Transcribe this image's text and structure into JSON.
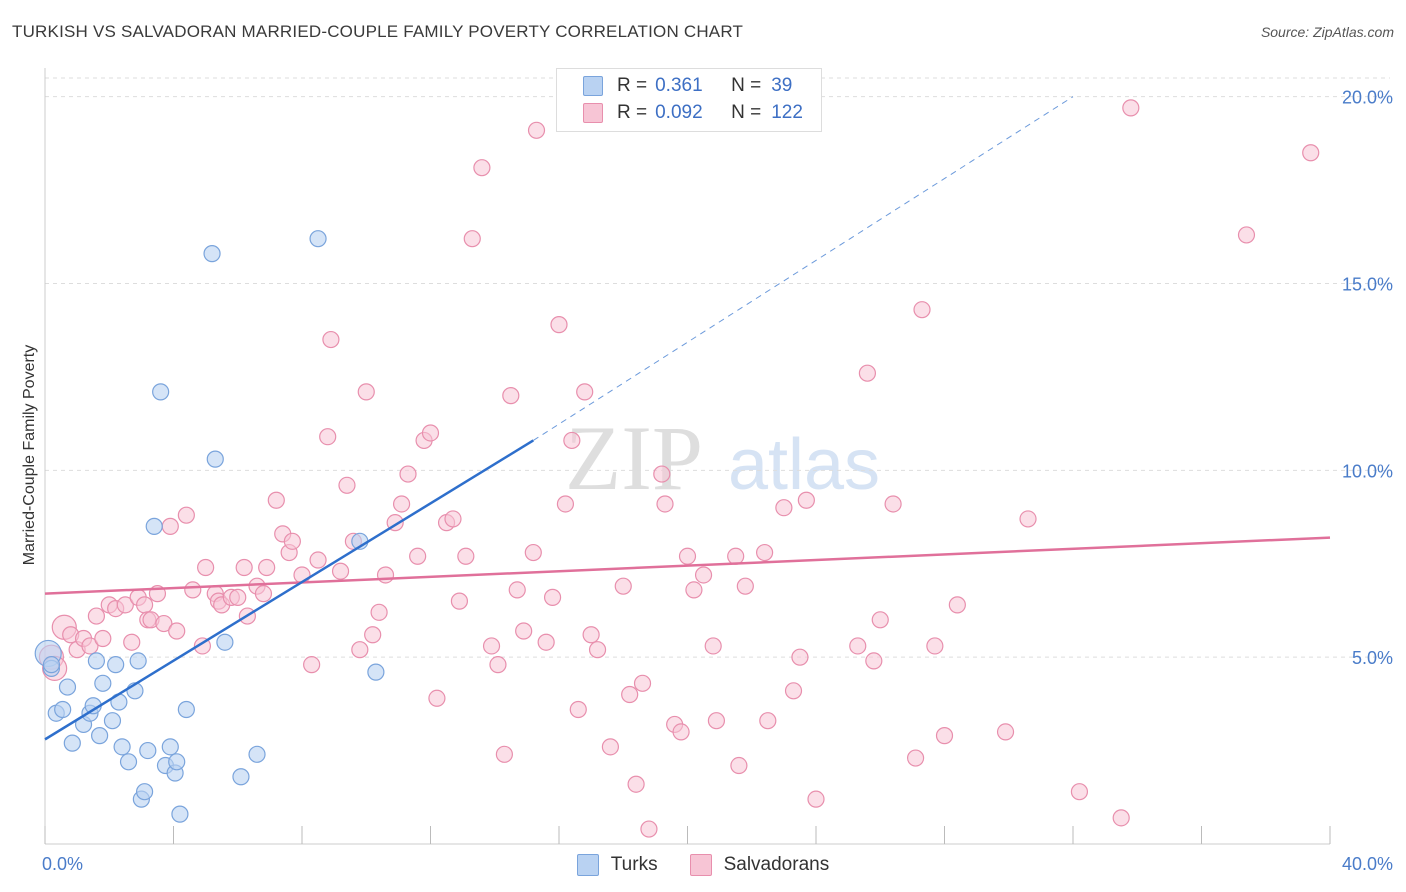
{
  "header": {
    "title": "TURKISH VS SALVADORAN MARRIED-COUPLE FAMILY POVERTY CORRELATION CHART",
    "source": "Source: ZipAtlas.com"
  },
  "watermark": {
    "zip": "ZIP",
    "atlas": "atlas"
  },
  "legend": {
    "r_label": "R =",
    "n_label": "N =",
    "turks": {
      "r": "0.361",
      "n": "39"
    },
    "salvadorans": {
      "r": "0.092",
      "n": "122"
    }
  },
  "colors": {
    "turks_fill": "#b9d2f2",
    "turks_stroke": "#7aa4dc",
    "turks_line": "#2e6fcc",
    "salv_fill": "#f7c5d5",
    "salv_stroke": "#e88fad",
    "salv_line": "#e0709a",
    "tick_text": "#4a7cc9"
  },
  "chart_data": {
    "type": "scatter",
    "title": "TURKISH VS SALVADORAN MARRIED-COUPLE FAMILY POVERTY CORRELATION CHART",
    "xlabel": "",
    "ylabel": "Married-Couple Family Poverty",
    "xlim": [
      0,
      40
    ],
    "ylim": [
      0,
      20.5
    ],
    "x_tick_labels": [
      {
        "value": 0,
        "label": "0.0%"
      },
      {
        "value": 40,
        "label": "40.0%"
      }
    ],
    "y_tick_labels": [
      {
        "value": 5,
        "label": "5.0%"
      },
      {
        "value": 10,
        "label": "10.0%"
      },
      {
        "value": 15,
        "label": "15.0%"
      },
      {
        "value": 20,
        "label": "20.0%"
      }
    ],
    "series": [
      {
        "name": "Turks",
        "r": 0.361,
        "n": 39,
        "trend": {
          "x0": 0,
          "y0": 2.8,
          "x1": 15.2,
          "y1": 10.8,
          "dash_to_x": 32.0,
          "dash_to_y": 20.0
        },
        "points": [
          [
            0.1,
            5.1
          ],
          [
            0.2,
            4.7
          ],
          [
            0.35,
            3.5
          ],
          [
            0.55,
            3.6
          ],
          [
            0.7,
            4.2
          ],
          [
            0.85,
            2.7
          ],
          [
            1.2,
            3.2
          ],
          [
            1.4,
            3.5
          ],
          [
            1.5,
            3.7
          ],
          [
            1.6,
            4.9
          ],
          [
            1.7,
            2.9
          ],
          [
            1.8,
            4.3
          ],
          [
            2.1,
            3.3
          ],
          [
            2.2,
            4.8
          ],
          [
            2.3,
            3.8
          ],
          [
            2.4,
            2.6
          ],
          [
            2.6,
            2.2
          ],
          [
            2.8,
            4.1
          ],
          [
            2.9,
            4.9
          ],
          [
            3.0,
            1.2
          ],
          [
            3.1,
            1.4
          ],
          [
            3.2,
            2.5
          ],
          [
            3.4,
            8.5
          ],
          [
            3.6,
            12.1
          ],
          [
            3.75,
            2.1
          ],
          [
            3.9,
            2.6
          ],
          [
            4.05,
            1.9
          ],
          [
            4.1,
            2.2
          ],
          [
            4.2,
            0.8
          ],
          [
            4.4,
            3.6
          ],
          [
            5.2,
            15.8
          ],
          [
            5.3,
            10.3
          ],
          [
            5.6,
            5.4
          ],
          [
            6.1,
            1.8
          ],
          [
            6.6,
            2.4
          ],
          [
            8.5,
            16.2
          ],
          [
            9.8,
            8.1
          ],
          [
            10.3,
            4.6
          ],
          [
            0.2,
            4.8
          ]
        ]
      },
      {
        "name": "Salvadorans",
        "r": 0.092,
        "n": 122,
        "trend": {
          "x0": 0,
          "y0": 6.7,
          "x1": 40,
          "y1": 8.2
        },
        "points": [
          [
            0.2,
            5.0
          ],
          [
            0.3,
            4.7
          ],
          [
            0.6,
            5.8
          ],
          [
            0.8,
            5.6
          ],
          [
            1.0,
            5.2
          ],
          [
            1.2,
            5.5
          ],
          [
            1.4,
            5.3
          ],
          [
            1.6,
            6.1
          ],
          [
            1.8,
            5.5
          ],
          [
            2.0,
            6.4
          ],
          [
            2.2,
            6.3
          ],
          [
            2.5,
            6.4
          ],
          [
            2.7,
            5.4
          ],
          [
            2.9,
            6.6
          ],
          [
            3.1,
            6.4
          ],
          [
            3.2,
            6.0
          ],
          [
            3.3,
            6.0
          ],
          [
            3.5,
            6.7
          ],
          [
            3.7,
            5.9
          ],
          [
            3.9,
            8.5
          ],
          [
            4.1,
            5.7
          ],
          [
            4.4,
            8.8
          ],
          [
            4.6,
            6.8
          ],
          [
            4.9,
            5.3
          ],
          [
            5.0,
            7.4
          ],
          [
            5.3,
            6.7
          ],
          [
            5.4,
            6.5
          ],
          [
            5.5,
            6.4
          ],
          [
            5.8,
            6.6
          ],
          [
            6.0,
            6.6
          ],
          [
            6.2,
            7.4
          ],
          [
            6.3,
            6.1
          ],
          [
            6.6,
            6.9
          ],
          [
            6.8,
            6.7
          ],
          [
            6.9,
            7.4
          ],
          [
            7.2,
            9.2
          ],
          [
            7.4,
            8.3
          ],
          [
            7.6,
            7.8
          ],
          [
            7.7,
            8.1
          ],
          [
            8.0,
            7.2
          ],
          [
            8.3,
            4.8
          ],
          [
            8.5,
            7.6
          ],
          [
            8.8,
            10.9
          ],
          [
            8.9,
            13.5
          ],
          [
            9.2,
            7.3
          ],
          [
            9.4,
            9.6
          ],
          [
            9.6,
            8.1
          ],
          [
            9.8,
            5.2
          ],
          [
            10.0,
            12.1
          ],
          [
            10.2,
            5.6
          ],
          [
            10.4,
            6.2
          ],
          [
            10.6,
            7.2
          ],
          [
            10.9,
            8.6
          ],
          [
            11.1,
            9.1
          ],
          [
            11.3,
            9.9
          ],
          [
            11.6,
            7.7
          ],
          [
            11.8,
            10.8
          ],
          [
            12.0,
            11.0
          ],
          [
            12.2,
            3.9
          ],
          [
            12.5,
            8.6
          ],
          [
            12.7,
            8.7
          ],
          [
            12.9,
            6.5
          ],
          [
            13.1,
            7.7
          ],
          [
            13.3,
            16.2
          ],
          [
            13.6,
            18.1
          ],
          [
            13.9,
            5.3
          ],
          [
            14.1,
            4.8
          ],
          [
            14.3,
            2.4
          ],
          [
            14.5,
            12.0
          ],
          [
            14.7,
            6.8
          ],
          [
            14.9,
            5.7
          ],
          [
            15.2,
            7.8
          ],
          [
            15.3,
            19.1
          ],
          [
            15.6,
            5.4
          ],
          [
            15.8,
            6.6
          ],
          [
            16.0,
            13.9
          ],
          [
            16.2,
            9.1
          ],
          [
            16.4,
            10.8
          ],
          [
            16.6,
            3.6
          ],
          [
            16.8,
            12.1
          ],
          [
            17.0,
            5.6
          ],
          [
            17.2,
            5.2
          ],
          [
            17.6,
            2.6
          ],
          [
            18.0,
            6.9
          ],
          [
            18.2,
            4.0
          ],
          [
            18.4,
            1.6
          ],
          [
            18.6,
            4.3
          ],
          [
            18.8,
            0.4
          ],
          [
            19.2,
            9.9
          ],
          [
            19.3,
            9.1
          ],
          [
            19.6,
            3.2
          ],
          [
            19.8,
            3.0
          ],
          [
            20.0,
            7.7
          ],
          [
            20.2,
            6.8
          ],
          [
            20.5,
            7.2
          ],
          [
            20.8,
            5.3
          ],
          [
            20.9,
            3.3
          ],
          [
            21.5,
            7.7
          ],
          [
            21.6,
            2.1
          ],
          [
            21.8,
            6.9
          ],
          [
            22.4,
            7.8
          ],
          [
            22.5,
            3.3
          ],
          [
            23.0,
            9.0
          ],
          [
            23.3,
            4.1
          ],
          [
            23.5,
            5.0
          ],
          [
            23.7,
            9.2
          ],
          [
            24.0,
            1.2
          ],
          [
            25.3,
            5.3
          ],
          [
            25.6,
            12.6
          ],
          [
            25.8,
            4.9
          ],
          [
            26.0,
            6.0
          ],
          [
            26.4,
            9.1
          ],
          [
            27.1,
            2.3
          ],
          [
            27.3,
            14.3
          ],
          [
            27.7,
            5.3
          ],
          [
            28.0,
            2.9
          ],
          [
            28.4,
            6.4
          ],
          [
            29.9,
            3.0
          ],
          [
            30.6,
            8.7
          ],
          [
            32.2,
            1.4
          ],
          [
            33.5,
            0.7
          ],
          [
            33.8,
            19.7
          ],
          [
            37.4,
            16.3
          ],
          [
            39.4,
            18.5
          ]
        ]
      }
    ]
  },
  "bottom_legend": {
    "turks_label": "Turks",
    "salvadorans_label": "Salvadorans"
  }
}
